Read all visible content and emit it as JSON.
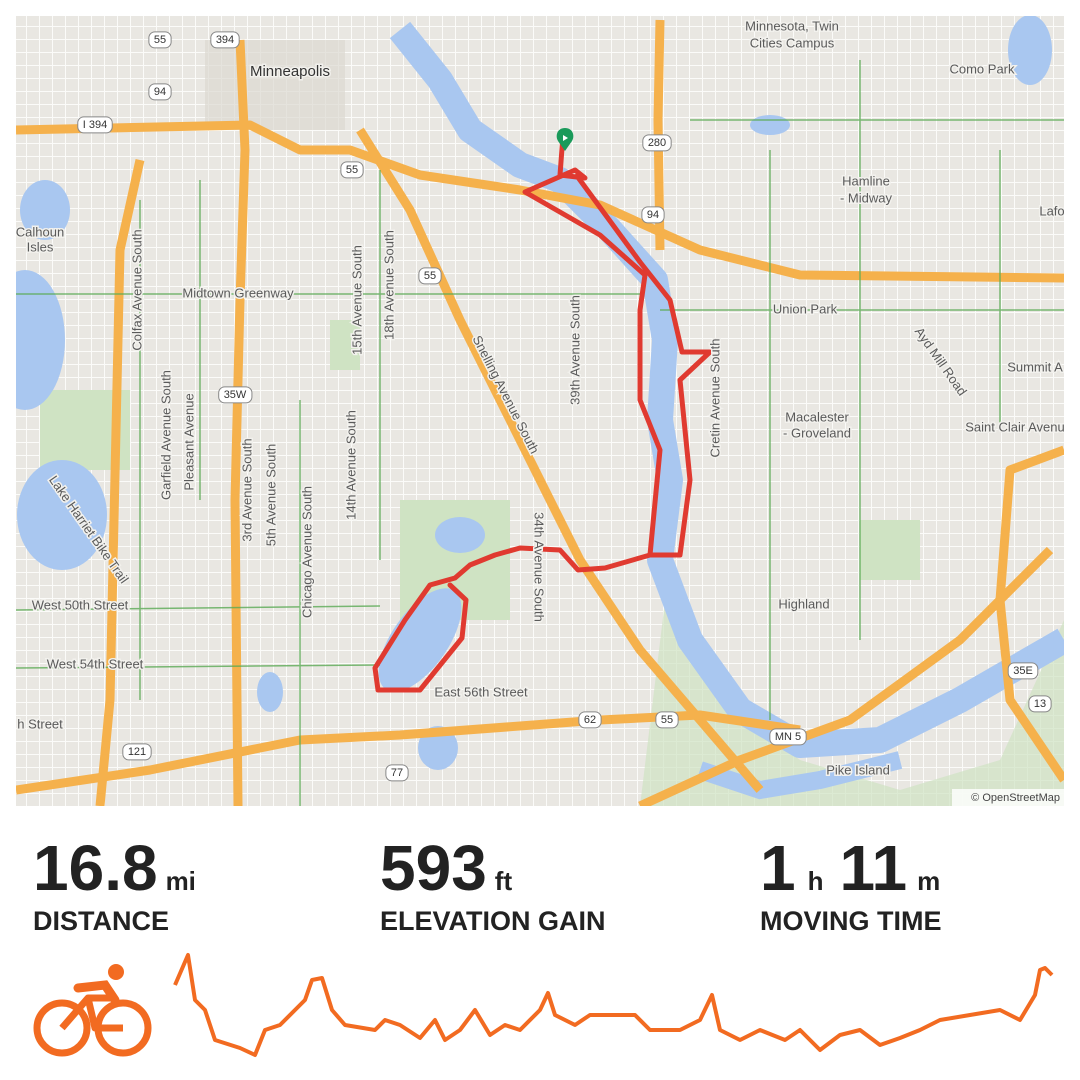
{
  "map": {
    "labels": [
      "Minneapolis",
      "Minnesota, Twin",
      "Cities Campus",
      "Como Park",
      "Hamline",
      "- Midway",
      "Lafo",
      "Calhoun",
      "Isles",
      "Midtown Greenway",
      "Union Park",
      "Ayd Mill Road",
      "Summit A",
      "Macalester",
      "- Groveland",
      "Saint Clair Avenu",
      "Highland",
      "West 50th Street",
      "West 54th Street",
      "East 56th Street",
      "h Street",
      "Pike Island",
      "Colfax Avenue South",
      "Garfield Avenue South",
      "Pleasant Avenue",
      "3rd Avenue South",
      "5th Avenue South",
      "Chicago Avenue South",
      "14th Avenue South",
      "15th Avenue South",
      "18th Avenue South",
      "Snelling Avenue South",
      "39th Avenue South",
      "34th Avenue South",
      "Cretin Avenue South",
      "Lake Harriet Bike Trail"
    ],
    "shields": [
      "55",
      "394",
      "94",
      "I 394",
      "55",
      "280",
      "94",
      "55",
      "35W",
      "121",
      "62",
      "55",
      "77",
      "MN 5",
      "35E",
      "13"
    ],
    "attribution": "© OpenStreetMap"
  },
  "stats": [
    {
      "value": 16.8,
      "unit": "mi",
      "label": "DISTANCE"
    },
    {
      "value": 593,
      "unit": "ft",
      "label": "ELEVATION GAIN"
    },
    {
      "hours": 1,
      "hours_unit": "h",
      "minutes": 11,
      "minutes_unit": "m",
      "label": "MOVING TIME"
    }
  ]
}
